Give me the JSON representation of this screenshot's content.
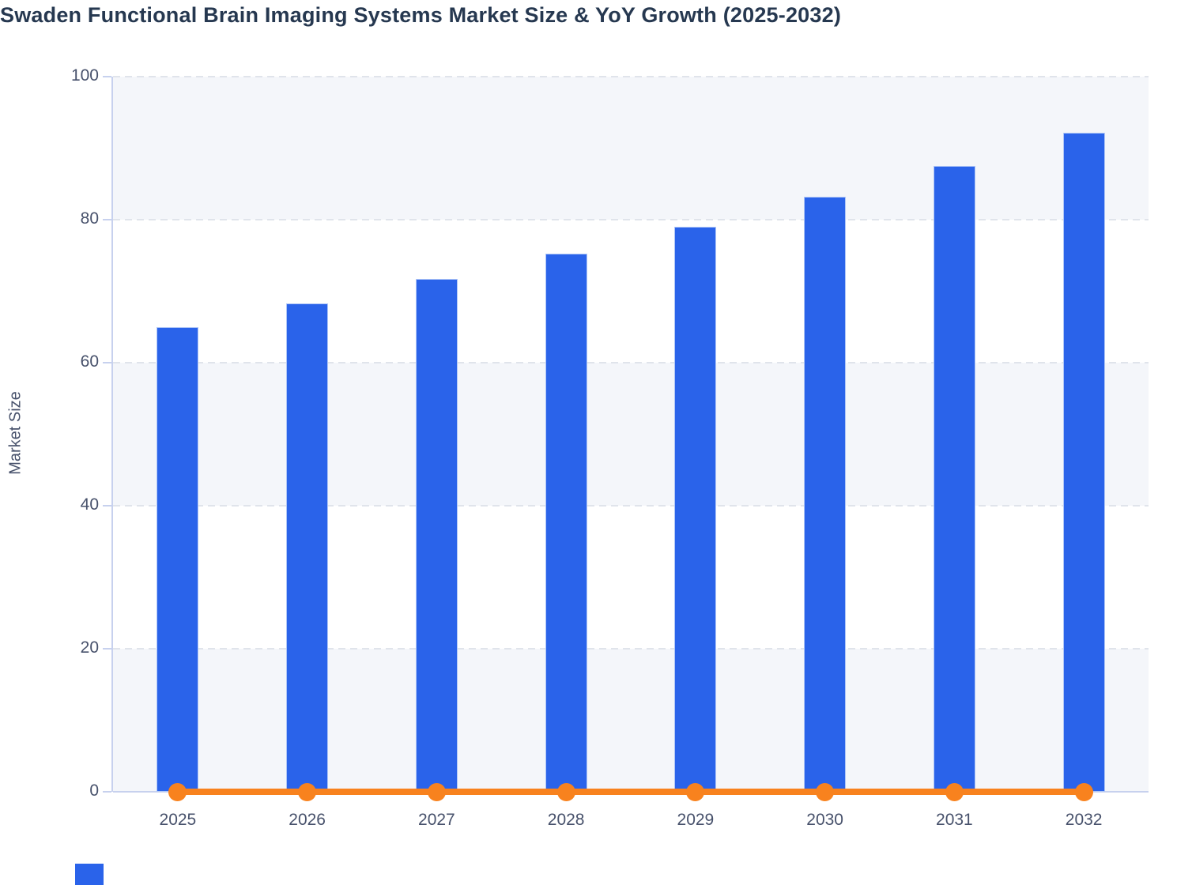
{
  "chart_data": {
    "type": "bar",
    "title": "Swaden Functional Brain Imaging Systems Market Size & YoY Growth (2025-2032)",
    "categories": [
      "2025",
      "2026",
      "2027",
      "2028",
      "2029",
      "2030",
      "2031",
      "2032"
    ],
    "series": [
      {
        "name": "Market Size",
        "type": "bar",
        "color": "#2a63ea",
        "values": [
          65,
          68.3,
          71.7,
          75.2,
          79,
          83.2,
          87.5,
          92.2
        ]
      },
      {
        "name": "YoY Growth",
        "type": "line",
        "color": "#f8821e",
        "values": [
          0,
          0,
          0,
          0,
          0,
          0,
          0,
          0
        ]
      }
    ],
    "xlabel": "",
    "ylabel": "Market Size",
    "ylim": [
      0,
      100
    ],
    "yticks": [
      0,
      20,
      40,
      60,
      80,
      100
    ],
    "grid": "horizontal-dashed",
    "legend_position": "none",
    "plot_band_fill": "alternating #f4f6fa and #ffffff"
  },
  "colors": {
    "bar": "#2a63ea",
    "bar_border": "#a9c0f4",
    "line": "#f8821e",
    "band_gray": "#f4f6fa",
    "band_white": "#ffffff",
    "gridline": "#e0e4eb",
    "axis": "#c7d1ee",
    "tick_text": "#47516b",
    "title_text": "#263850"
  }
}
